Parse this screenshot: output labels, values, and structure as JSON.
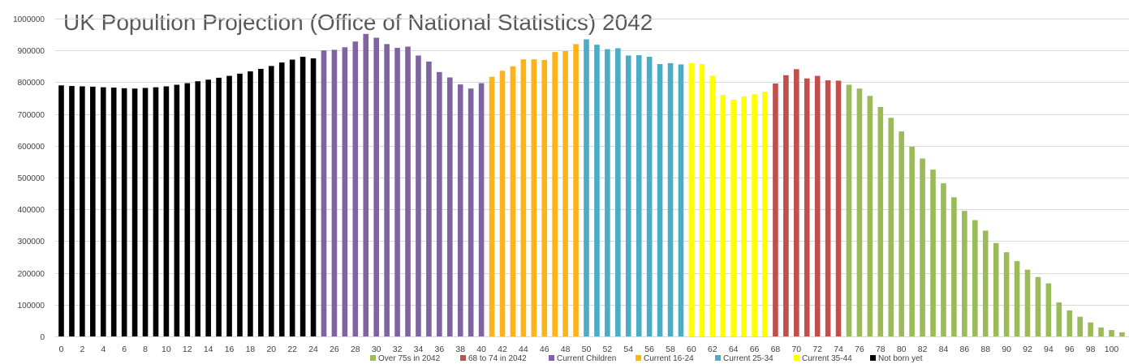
{
  "chart_data": {
    "type": "bar",
    "title": "UK Popultion Projection (Office of National Statistics) 2042",
    "xlabel": "",
    "ylabel": "",
    "ylim": [
      0,
      1000000
    ],
    "yticks": [
      0,
      100000,
      200000,
      300000,
      400000,
      500000,
      600000,
      700000,
      800000,
      900000,
      1000000
    ],
    "x_tick_labels": [
      "0",
      "2",
      "4",
      "6",
      "8",
      "10",
      "12",
      "14",
      "16",
      "18",
      "20",
      "22",
      "24",
      "26",
      "28",
      "30",
      "32",
      "34",
      "36",
      "38",
      "40",
      "42",
      "44",
      "46",
      "48",
      "50",
      "52",
      "54",
      "56",
      "58",
      "60",
      "62",
      "64",
      "66",
      "68",
      "70",
      "72",
      "74",
      "76",
      "78",
      "80",
      "82",
      "84",
      "86",
      "88",
      "90",
      "92",
      "94",
      "96",
      "98",
      "100"
    ],
    "grid": true,
    "legend_position": "bottom",
    "legend": [
      {
        "label": "Over 75s in 2042",
        "color": "#9bbb59"
      },
      {
        "label": "68 to 74 in 2042",
        "color": "#c0504d"
      },
      {
        "label": "Current Children",
        "color": "#8064a2"
      },
      {
        "label": "Current 16-24",
        "color": "#ffb31a"
      },
      {
        "label": "Current 25-34",
        "color": "#4bacc6"
      },
      {
        "label": "Current 35-44",
        "color": "#ffff00"
      },
      {
        "label": "Not born yet",
        "color": "#000000"
      }
    ],
    "series": [
      {
        "name": "Not born yet",
        "color": "#000000",
        "x_start": 0,
        "values": [
          790000,
          788000,
          787000,
          786000,
          784000,
          783000,
          781000,
          780000,
          782000,
          784000,
          787000,
          792000,
          797000,
          803000,
          808000,
          814000,
          820000,
          827000,
          834000,
          842000,
          851000,
          862000,
          871000,
          880000,
          875000
        ]
      },
      {
        "name": "Current Children",
        "color": "#8064a2",
        "x_start": 25,
        "values": [
          900000,
          902000,
          910000,
          928000,
          952000,
          940000,
          920000,
          908000,
          912000,
          884000,
          865000,
          832000,
          815000,
          793000,
          780000,
          797000
        ]
      },
      {
        "name": "Current 16-24",
        "color": "#ffb31a",
        "x_start": 41,
        "values": [
          817000,
          836000,
          850000,
          872000,
          872000,
          870000,
          895000,
          898000,
          920000
        ]
      },
      {
        "name": "Current 25-34",
        "color": "#4bacc6",
        "x_start": 50,
        "values": [
          935000,
          918000,
          904000,
          907000,
          884000,
          885000,
          880000,
          857000,
          860000,
          856000
        ]
      },
      {
        "name": "Current 35-44",
        "color": "#ffff00",
        "x_start": 60,
        "values": [
          860000,
          857000,
          820000,
          760000,
          745000,
          755000,
          762000,
          770000
        ]
      },
      {
        "name": "68 to 74 in 2042",
        "color": "#c0504d",
        "x_start": 68,
        "values": [
          796000,
          822000,
          841000,
          812000,
          820000,
          806000,
          805000
        ]
      },
      {
        "name": "Over 75s in 2042",
        "color": "#9bbb59",
        "x_start": 75,
        "values": [
          792000,
          780000,
          757000,
          722000,
          688000,
          645000,
          597000,
          560000,
          525000,
          482000,
          438000,
          395000,
          366000,
          333000,
          294000,
          265000,
          237000,
          210000,
          187000,
          167000,
          107000,
          82000,
          62000,
          44000,
          28000,
          20000,
          13000
        ]
      }
    ]
  }
}
